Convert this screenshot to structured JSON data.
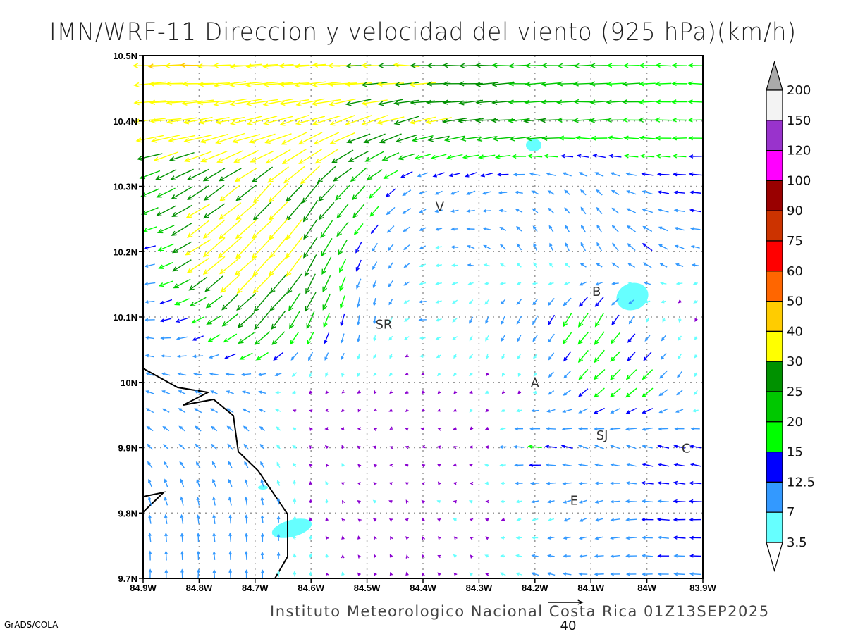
{
  "title": "IMN/WRF-11 Direccion y velocidad del viento (925 hPa)(km/h)",
  "footer": "Instituto Meteorologico Nacional Costa Rica 01Z13SEP2025",
  "credit": "GrADS/COLA",
  "reference_vector": {
    "label": "40",
    "speed_kmh": 40
  },
  "map": {
    "lon_range": [
      -84.9,
      -83.9
    ],
    "lat_range": [
      9.7,
      10.5
    ],
    "lon_labels": [
      "84.9W",
      "84.8W",
      "84.7W",
      "84.6W",
      "84.5W",
      "84.4W",
      "84.3W",
      "84.2W",
      "84.1W",
      "84W",
      "83.9W"
    ],
    "lat_labels": [
      "10.5N",
      "10.4N",
      "10.3N",
      "10.2N",
      "10.1N",
      "10N",
      "9.9N",
      "9.8N",
      "9.7N"
    ],
    "stations": [
      {
        "label": "V",
        "lon": -84.37,
        "lat": 10.27
      },
      {
        "label": "B",
        "lon": -84.09,
        "lat": 10.14
      },
      {
        "label": "SR",
        "lon": -84.47,
        "lat": 10.09
      },
      {
        "label": "A",
        "lon": -84.2,
        "lat": 10.0
      },
      {
        "label": "SJ",
        "lon": -84.08,
        "lat": 9.92
      },
      {
        "label": "C",
        "lon": -83.93,
        "lat": 9.9
      },
      {
        "label": "E",
        "lon": -84.13,
        "lat": 9.82
      }
    ],
    "wind_field_lats": [
      10.5,
      10.4,
      10.3,
      10.2,
      10.1,
      10.0,
      9.9,
      9.8,
      9.7
    ],
    "wind_field_lons": [
      -84.9,
      -84.8,
      -84.7,
      -84.6,
      -84.5,
      -84.4,
      -84.3,
      -84.2,
      -84.1,
      -84.0,
      -83.9
    ],
    "wind_field_uv": [
      [
        [
          -40,
          0
        ],
        [
          -40,
          0
        ],
        [
          -38,
          0
        ],
        [
          -35,
          1
        ],
        [
          -30,
          2
        ],
        [
          -28,
          2
        ],
        [
          -25,
          0
        ],
        [
          -22,
          0
        ],
        [
          -20,
          0
        ],
        [
          -18,
          0
        ],
        [
          -15,
          1
        ]
      ],
      [
        [
          -35,
          -5
        ],
        [
          -35,
          -5
        ],
        [
          -35,
          -8
        ],
        [
          -32,
          -10
        ],
        [
          -30,
          -10
        ],
        [
          -30,
          -6
        ],
        [
          -28,
          -3
        ],
        [
          -25,
          -2
        ],
        [
          -22,
          -1
        ],
        [
          -20,
          0
        ],
        [
          -16,
          0
        ]
      ],
      [
        [
          -22,
          -10
        ],
        [
          -25,
          -15
        ],
        [
          -22,
          -20
        ],
        [
          -20,
          -22
        ],
        [
          -15,
          -15
        ],
        [
          -8,
          -3
        ],
        [
          -10,
          -4
        ],
        [
          -8,
          3
        ],
        [
          -5,
          6
        ],
        [
          -12,
          2
        ],
        [
          -14,
          1
        ]
      ],
      [
        [
          -10,
          0
        ],
        [
          -28,
          -20
        ],
        [
          -25,
          -25
        ],
        [
          -15,
          -25
        ],
        [
          -5,
          -10
        ],
        [
          -6,
          -3
        ],
        [
          -8,
          4
        ],
        [
          -3,
          8
        ],
        [
          -5,
          10
        ],
        [
          -10,
          8
        ],
        [
          -9,
          1
        ]
      ],
      [
        [
          -10,
          1
        ],
        [
          -15,
          -8
        ],
        [
          -22,
          -22
        ],
        [
          -10,
          -20
        ],
        [
          0,
          -10
        ],
        [
          -8,
          0
        ],
        [
          -3,
          -8
        ],
        [
          -6,
          -10
        ],
        [
          -12,
          -18
        ],
        [
          -3,
          -4
        ],
        [
          -1,
          -3
        ]
      ],
      [
        [
          -9,
          3
        ],
        [
          -8,
          3
        ],
        [
          -9,
          2
        ],
        [
          -2,
          -3
        ],
        [
          -2,
          -2
        ],
        [
          -2,
          -2
        ],
        [
          -2,
          -2
        ],
        [
          -2,
          -2
        ],
        [
          -12,
          -12
        ],
        [
          -12,
          -12
        ],
        [
          -1,
          -4
        ]
      ],
      [
        [
          -6,
          6
        ],
        [
          -6,
          6
        ],
        [
          -5,
          6
        ],
        [
          -2,
          3
        ],
        [
          -2,
          1
        ],
        [
          -2,
          1
        ],
        [
          -2,
          -1
        ],
        [
          -15,
          1
        ],
        [
          -10,
          4
        ],
        [
          -12,
          3
        ],
        [
          -12,
          3
        ]
      ],
      [
        [
          -2,
          10
        ],
        [
          -1,
          10
        ],
        [
          -1,
          10
        ],
        [
          0,
          4
        ],
        [
          -2,
          1
        ],
        [
          -2,
          2
        ],
        [
          -2,
          1
        ],
        [
          -6,
          -2
        ],
        [
          -8,
          -4
        ],
        [
          -13,
          1
        ],
        [
          -14,
          0
        ]
      ],
      [
        [
          0,
          10
        ],
        [
          0,
          10
        ],
        [
          0,
          9
        ],
        [
          0,
          3
        ],
        [
          -1,
          2
        ],
        [
          -1,
          2
        ],
        [
          -2,
          1
        ],
        [
          -8,
          3
        ],
        [
          -10,
          0
        ],
        [
          -12,
          0
        ],
        [
          -12,
          0
        ]
      ]
    ]
  },
  "colorbar": {
    "labels": [
      "200",
      "150",
      "120",
      "100",
      "90",
      "75",
      "60",
      "50",
      "40",
      "30",
      "25",
      "20",
      "15",
      "12.5",
      "7",
      "3.5"
    ],
    "thresholds": [
      3.5,
      7,
      12.5,
      15,
      20,
      25,
      30,
      40,
      50,
      60,
      75,
      90,
      100,
      120,
      150,
      200
    ],
    "colors": [
      "#66ffff",
      "#3399ff",
      "#0000ff",
      "#00ff00",
      "#00c800",
      "#009100",
      "#ffff00",
      "#ffcc00",
      "#ff6600",
      "#ff0000",
      "#cc3300",
      "#990000",
      "#ff00ff",
      "#9933cc",
      "#f3f3f3"
    ],
    "below_color": "#ffffff",
    "above_color": "#aaaaaa",
    "weak_arrow_color": "#8a00d0"
  }
}
